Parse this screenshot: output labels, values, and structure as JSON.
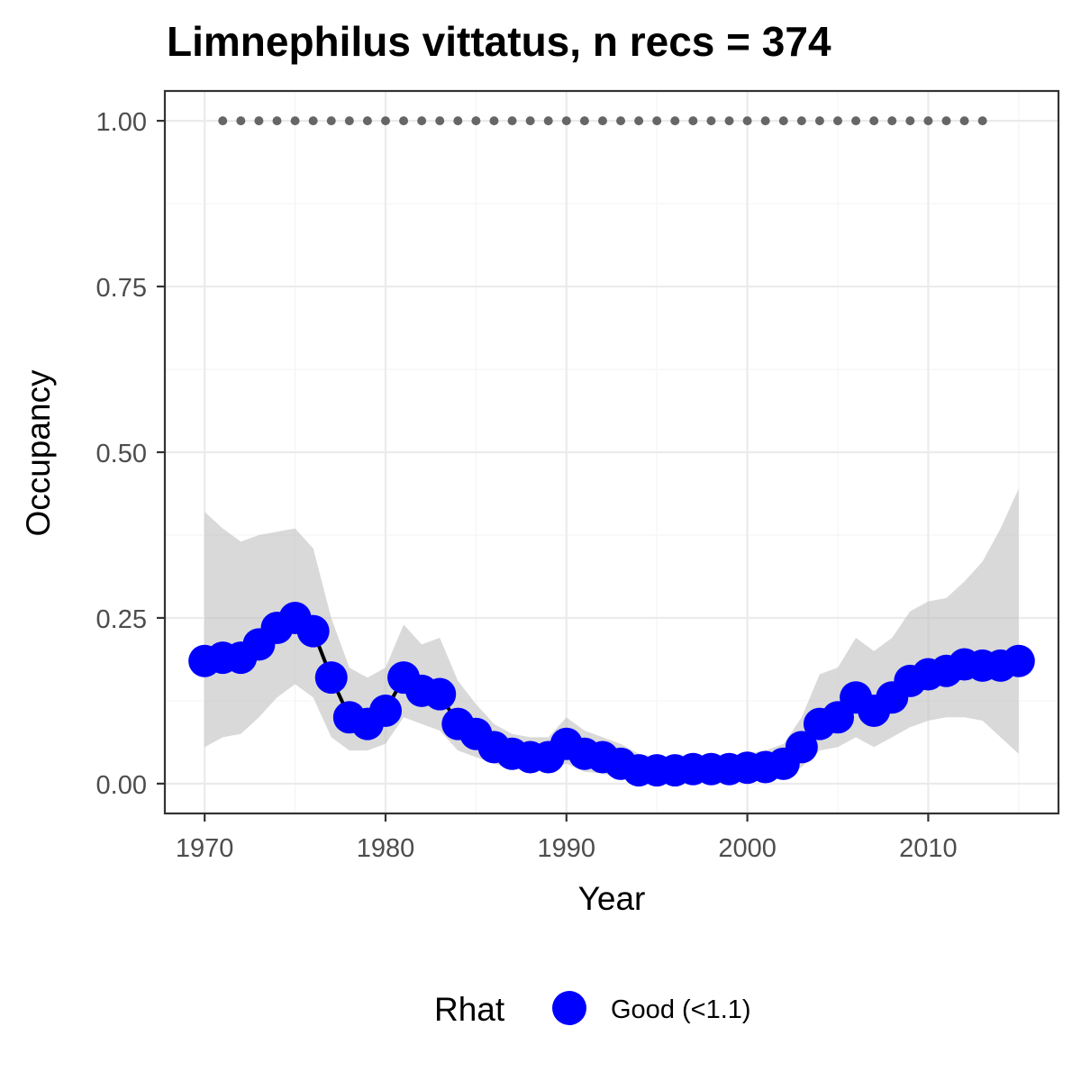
{
  "chart_data": {
    "type": "line",
    "title": "Limnephilus vittatus, n recs = 374",
    "xlabel": "Year",
    "ylabel": "Occupancy",
    "xlim": [
      1967.8,
      2017.2
    ],
    "ylim": [
      -0.045,
      1.045
    ],
    "x_ticks": [
      1970,
      1980,
      1990,
      2000,
      2010
    ],
    "x_tick_labels": [
      "1970",
      "1980",
      "1990",
      "2000",
      "2010"
    ],
    "y_ticks": [
      0,
      0.25,
      0.5,
      0.75,
      1.0
    ],
    "y_tick_labels": [
      "0.00",
      "0.25",
      "0.50",
      "0.75",
      "1.00"
    ],
    "grid": true,
    "legend": {
      "title": "Rhat",
      "position": "bottom",
      "entries": [
        {
          "label": "Good (<1.1)",
          "color": "#0000ff"
        }
      ]
    },
    "series": [
      {
        "name": "Good (<1.1)",
        "color": "#0000ff",
        "x": [
          1970,
          1971,
          1972,
          1973,
          1974,
          1975,
          1976,
          1977,
          1978,
          1979,
          1980,
          1981,
          1982,
          1983,
          1984,
          1985,
          1986,
          1987,
          1988,
          1989,
          1990,
          1991,
          1992,
          1993,
          1994,
          1995,
          1996,
          1997,
          1998,
          1999,
          2000,
          2001,
          2002,
          2003,
          2004,
          2005,
          2006,
          2007,
          2008,
          2009,
          2010,
          2011,
          2012,
          2013,
          2014,
          2015
        ],
        "y": [
          0.185,
          0.19,
          0.19,
          0.21,
          0.235,
          0.25,
          0.23,
          0.16,
          0.1,
          0.09,
          0.11,
          0.16,
          0.14,
          0.135,
          0.09,
          0.075,
          0.055,
          0.045,
          0.04,
          0.04,
          0.06,
          0.045,
          0.04,
          0.03,
          0.02,
          0.02,
          0.02,
          0.022,
          0.022,
          0.022,
          0.024,
          0.025,
          0.03,
          0.055,
          0.09,
          0.1,
          0.13,
          0.11,
          0.13,
          0.155,
          0.165,
          0.17,
          0.18,
          0.178,
          0.178,
          0.185
        ],
        "lower": [
          0.055,
          0.07,
          0.075,
          0.1,
          0.13,
          0.15,
          0.13,
          0.07,
          0.05,
          0.05,
          0.06,
          0.1,
          0.09,
          0.08,
          0.05,
          0.04,
          0.03,
          0.022,
          0.02,
          0.02,
          0.03,
          0.018,
          0.015,
          0.01,
          0.005,
          0.005,
          0.005,
          0.006,
          0.006,
          0.006,
          0.007,
          0.007,
          0.01,
          0.025,
          0.05,
          0.055,
          0.07,
          0.055,
          0.07,
          0.085,
          0.095,
          0.1,
          0.1,
          0.095,
          0.07,
          0.045
        ],
        "upper": [
          0.41,
          0.385,
          0.365,
          0.375,
          0.38,
          0.385,
          0.355,
          0.25,
          0.175,
          0.16,
          0.175,
          0.24,
          0.21,
          0.22,
          0.155,
          0.12,
          0.09,
          0.075,
          0.07,
          0.07,
          0.1,
          0.08,
          0.07,
          0.06,
          0.045,
          0.04,
          0.04,
          0.042,
          0.042,
          0.042,
          0.045,
          0.05,
          0.06,
          0.1,
          0.165,
          0.175,
          0.22,
          0.2,
          0.22,
          0.26,
          0.275,
          0.28,
          0.305,
          0.335,
          0.385,
          0.445
        ]
      }
    ],
    "reference_points": {
      "color": "#666666",
      "x": [
        1971,
        1972,
        1973,
        1974,
        1975,
        1976,
        1977,
        1978,
        1979,
        1980,
        1981,
        1982,
        1983,
        1984,
        1985,
        1986,
        1987,
        1988,
        1989,
        1990,
        1991,
        1992,
        1993,
        1994,
        1995,
        1996,
        1997,
        1998,
        1999,
        2000,
        2001,
        2002,
        2003,
        2004,
        2005,
        2006,
        2007,
        2008,
        2009,
        2010,
        2011,
        2012,
        2013
      ],
      "y": 1.0
    },
    "colors": {
      "ribbon": "#bfbfbf",
      "line": "#000000",
      "points": "#0000ff",
      "panel_border": "#333333",
      "grid_major": "#ebebeb",
      "grid_minor": "#f5f5f5"
    }
  }
}
